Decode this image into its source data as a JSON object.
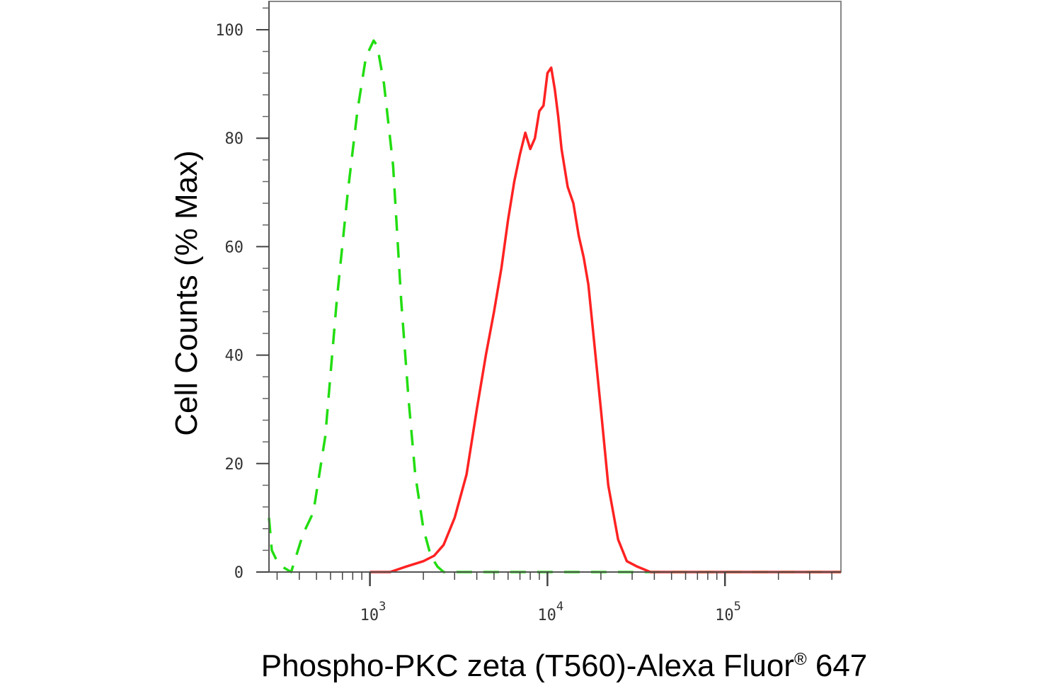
{
  "chart_data": {
    "type": "line",
    "xlabel": "Phospho-PKC zeta (T560)-Alexa Fluor",
    "xlabel_mark": "®",
    "xlabel_suffix": " 647",
    "ylabel": "Cell Counts (% Max)",
    "x_scale": "log",
    "xlim": [
      270,
      450000
    ],
    "ylim": [
      0,
      105
    ],
    "y_ticks": [
      {
        "value": 0,
        "label": "0"
      },
      {
        "value": 20,
        "label": "20"
      },
      {
        "value": 40,
        "label": "40"
      },
      {
        "value": 60,
        "label": "60"
      },
      {
        "value": 80,
        "label": "80"
      },
      {
        "value": 100,
        "label": "100"
      }
    ],
    "x_ticks": [
      {
        "value": 1000,
        "base": "10",
        "exp": "3"
      },
      {
        "value": 10000,
        "base": "10",
        "exp": "4"
      },
      {
        "value": 100000,
        "base": "10",
        "exp": "5"
      }
    ],
    "grid": false,
    "series": [
      {
        "color": "#22dd11",
        "style": "dashed",
        "x": [
          270,
          280,
          300,
          320,
          360,
          420,
          480,
          560,
          650,
          750,
          850,
          950,
          1050,
          1100,
          1200,
          1350,
          1500,
          1650,
          1800,
          2000,
          2200,
          2400,
          2600,
          3000,
          4000,
          10000,
          100000,
          450000
        ],
        "y": [
          10,
          4,
          2,
          1,
          0,
          7,
          11,
          25,
          50,
          70,
          85,
          95,
          98,
          97,
          90,
          75,
          50,
          32,
          18,
          8,
          3,
          1,
          0,
          0,
          0,
          0,
          0,
          0
        ]
      },
      {
        "color": "#ff2222",
        "style": "solid",
        "x": [
          1000,
          1300,
          1600,
          2000,
          2300,
          2600,
          3000,
          3500,
          4000,
          4500,
          5000,
          5500,
          6000,
          6500,
          7000,
          7500,
          8000,
          8500,
          9000,
          9500,
          10000,
          10500,
          11000,
          11500,
          12000,
          13000,
          14000,
          15000,
          16000,
          17000,
          18000,
          20000,
          22000,
          25000,
          28000,
          32000,
          38000,
          45000,
          100000,
          450000
        ],
        "y": [
          0,
          0,
          1,
          2,
          3,
          5,
          10,
          18,
          30,
          40,
          48,
          56,
          65,
          72,
          77,
          81,
          78,
          80,
          85,
          86,
          92,
          93,
          89,
          84,
          78,
          71,
          68,
          62,
          58,
          53,
          45,
          30,
          16,
          6,
          2,
          1,
          0,
          0,
          0,
          0
        ]
      }
    ]
  }
}
